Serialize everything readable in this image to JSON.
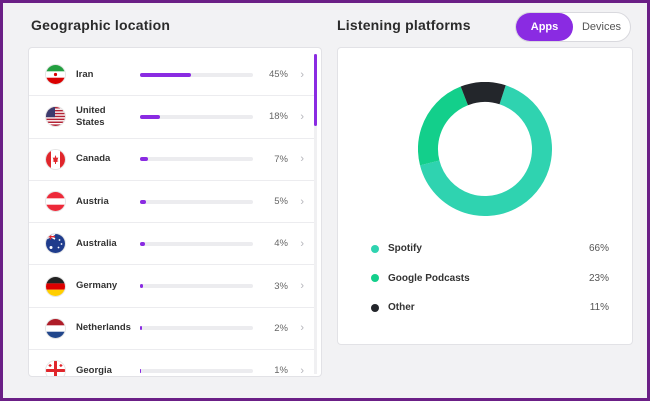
{
  "geo": {
    "title": "Geographic location",
    "rows": [
      {
        "country": "Iran",
        "pct": "45%",
        "value": 45,
        "flag": "iran-flag-icon"
      },
      {
        "country": "United States",
        "pct": "18%",
        "value": 18,
        "flag": "usa-flag-icon"
      },
      {
        "country": "Canada",
        "pct": "7%",
        "value": 7,
        "flag": "canada-flag-icon"
      },
      {
        "country": "Austria",
        "pct": "5%",
        "value": 5,
        "flag": "austria-flag-icon"
      },
      {
        "country": "Australia",
        "pct": "4%",
        "value": 4,
        "flag": "australia-flag-icon"
      },
      {
        "country": "Germany",
        "pct": "3%",
        "value": 3,
        "flag": "germany-flag-icon"
      },
      {
        "country": "Netherlands",
        "pct": "2%",
        "value": 2,
        "flag": "netherlands-flag-icon"
      },
      {
        "country": "Georgia",
        "pct": "1%",
        "value": 1,
        "flag": "georgia-flag-icon"
      }
    ],
    "chevron": "›"
  },
  "platforms": {
    "title": "Listening platforms",
    "toggle": {
      "apps": "Apps",
      "devices": "Devices",
      "selected": "apps"
    },
    "legend": [
      {
        "label": "Spotify",
        "pct": "66%",
        "value": 66,
        "color": "#2fd3b0"
      },
      {
        "label": "Google Podcasts",
        "pct": "23%",
        "value": 23,
        "color": "#13cf8b"
      },
      {
        "label": "Other",
        "pct": "11%",
        "value": 11,
        "color": "#23262b"
      }
    ]
  },
  "colors": {
    "accent": "#8a2be2",
    "frame": "#6b1f86"
  }
}
